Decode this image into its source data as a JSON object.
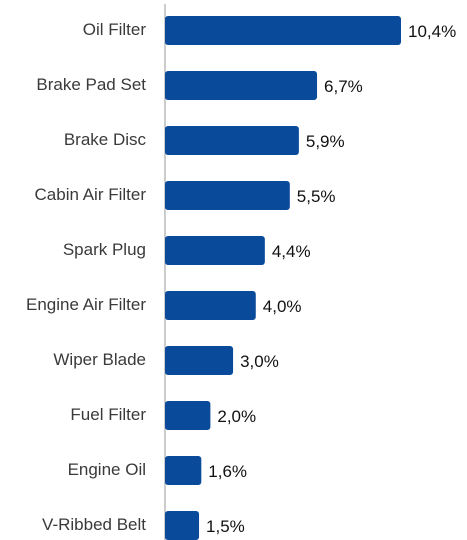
{
  "chart_data": {
    "type": "bar",
    "orientation": "horizontal",
    "categories": [
      "Oil Filter",
      "Brake Pad Set",
      "Brake Disc",
      "Cabin Air Filter",
      "Spark Plug",
      "Engine Air Filter",
      "Wiper Blade",
      "Fuel Filter",
      "Engine Oil",
      "V-Ribbed Belt"
    ],
    "values": [
      10.4,
      6.7,
      5.9,
      5.5,
      4.4,
      4.0,
      3.0,
      2.0,
      1.6,
      1.5
    ],
    "data_labels": [
      "10,4%",
      "6,7%",
      "5,9%",
      "5,5%",
      "4,4%",
      "4,0%",
      "3,0%",
      "2,0%",
      "1,6%",
      "1,5%"
    ],
    "xlim": [
      0,
      10.4
    ],
    "grid": false,
    "legend": "none",
    "colors": {
      "bar": "#0A4A9B",
      "axis": "#9a9a9a"
    }
  }
}
